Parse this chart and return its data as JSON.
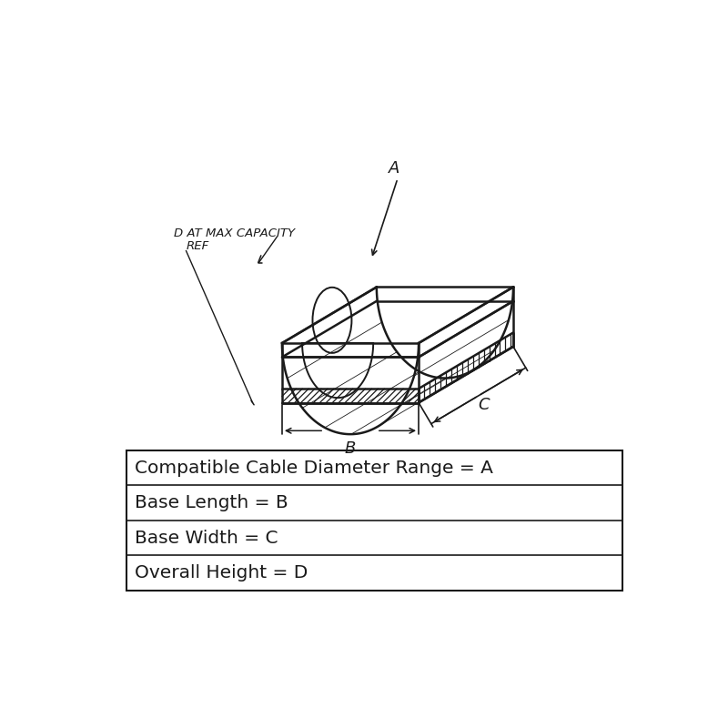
{
  "background_color": "#ffffff",
  "line_color": "#1a1a1a",
  "table_rows": [
    "Compatible Cable Diameter Range = A",
    "Base Length = B",
    "Base Width = C",
    "Overall Height = D"
  ],
  "label_A": "A",
  "label_B": "B",
  "label_C": "C",
  "label_D_text": "D AT MAX CAPACITY\nREF",
  "font_size_table": 14.5,
  "font_size_labels": 13
}
